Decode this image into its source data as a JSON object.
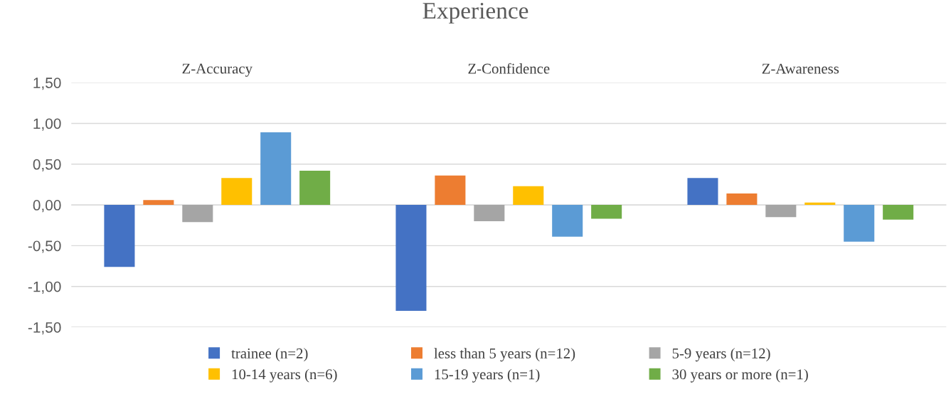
{
  "chart_data": {
    "type": "bar",
    "title": "Experience",
    "categories": [
      "Z-Accuracy",
      "Z-Confidence",
      "Z-Awareness"
    ],
    "series": [
      {
        "name": "trainee (n=2)",
        "color": "#4472c4",
        "values": [
          -0.76,
          -1.3,
          0.33
        ]
      },
      {
        "name": "less than 5 years (n=12)",
        "color": "#ed7d31",
        "values": [
          0.06,
          0.36,
          0.14
        ]
      },
      {
        "name": "5-9 years (n=12)",
        "color": "#a5a5a5",
        "values": [
          -0.21,
          -0.2,
          -0.15
        ]
      },
      {
        "name": "10-14 years (n=6)",
        "color": "#ffc000",
        "values": [
          0.33,
          0.23,
          0.03
        ]
      },
      {
        "name": "15-19 years (n=1)",
        "color": "#5b9bd5",
        "values": [
          0.89,
          -0.39,
          -0.45
        ]
      },
      {
        "name": "30 years or more (n=1)",
        "color": "#70ad47",
        "values": [
          0.42,
          -0.17,
          -0.18
        ]
      }
    ],
    "ylim": [
      -1.5,
      1.5
    ],
    "yticks": [
      {
        "value": -1.5,
        "label": "-1,50"
      },
      {
        "value": -1.0,
        "label": "-1,00"
      },
      {
        "value": -0.5,
        "label": "-0,50"
      },
      {
        "value": 0,
        "label": "0,00"
      },
      {
        "value": 0.5,
        "label": "0,50"
      },
      {
        "value": 1.0,
        "label": "1,00"
      },
      {
        "value": 1.5,
        "label": "1,50"
      }
    ],
    "grid": "y",
    "legend": "bottom"
  }
}
